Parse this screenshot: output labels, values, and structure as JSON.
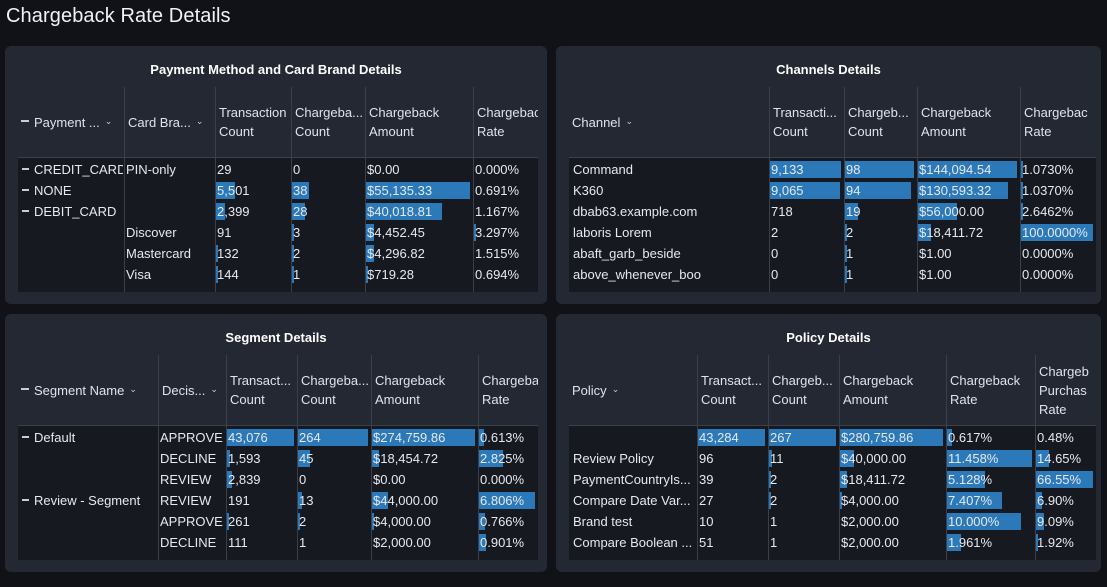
{
  "page": {
    "title": "Chargeback Rate Details"
  },
  "colors": {
    "bar": "#2b79b8",
    "panel": "#232832",
    "body": "#16191f"
  },
  "panels": {
    "payment": {
      "title": "Payment Method and Card Brand Details",
      "headers": [
        "Payment ...",
        "Card Bra...",
        "Transaction\nCount",
        "Chargeba...\nCount",
        "Chargeback\nAmount",
        "Chargeback\nRate"
      ],
      "rows": [
        {
          "a": "CREDIT_CARD",
          "b": "PIN-only",
          "c": "29",
          "d": "0",
          "e": "$0.00",
          "f": "0.000%",
          "cp": 0.0,
          "dp": 0.0,
          "ep": 0.0,
          "fp": 0.0
        },
        {
          "a": "NONE",
          "b": "",
          "c": "5,501",
          "d": "38",
          "e": "$55,135.33",
          "f": "0.691%",
          "cp": 0.27,
          "dp": 0.24,
          "ep": 1.0,
          "fp": 0.0
        },
        {
          "a": "DEBIT_CARD",
          "b": "",
          "c": "2,399",
          "d": "28",
          "e": "$40,018.81",
          "f": "1.167%",
          "cp": 0.12,
          "dp": 0.18,
          "ep": 0.73,
          "fp": 0.0
        },
        {
          "a": "",
          "b": "Discover",
          "c": "91",
          "d": "3",
          "e": "$4,452.45",
          "f": "3.297%",
          "cp": 0.0,
          "dp": 0.02,
          "ep": 0.08,
          "fp": 0.02
        },
        {
          "a": "",
          "b": "Mastercard",
          "c": "132",
          "d": "2",
          "e": "$4,296.82",
          "f": "1.515%",
          "cp": 0.01,
          "dp": 0.02,
          "ep": 0.08,
          "fp": 0.0
        },
        {
          "a": "",
          "b": "Visa",
          "c": "144",
          "d": "1",
          "e": "$719.28",
          "f": "0.694%",
          "cp": 0.01,
          "dp": 0.01,
          "ep": 0.01,
          "fp": 0.0
        }
      ]
    },
    "channels": {
      "title": "Channels Details",
      "headers": [
        "Channel",
        "Transacti...\nCount",
        "Chargeb...\nCount",
        "Chargeback\nAmount",
        "Chargebac\nRate"
      ],
      "rows": [
        {
          "a": "Command",
          "c": "9,133",
          "d": "98",
          "e": "$144,094.54",
          "f": "1.0730%",
          "cp": 1.0,
          "dp": 1.0,
          "ep": 1.0,
          "fp": 0.01
        },
        {
          "a": "K360",
          "c": "9,065",
          "d": "94",
          "e": "$130,593.32",
          "f": "1.0370%",
          "cp": 0.99,
          "dp": 0.96,
          "ep": 0.91,
          "fp": 0.01
        },
        {
          "a": "dbab63.example.com",
          "c": "718",
          "d": "19",
          "e": "$56,000.00",
          "f": "2.6462%",
          "cp": 0.0,
          "dp": 0.19,
          "ep": 0.39,
          "fp": 0.03
        },
        {
          "a": "laboris Lorem",
          "c": "2",
          "d": "2",
          "e": "$18,411.72",
          "f": "100.0000%",
          "cp": 0.0,
          "dp": 0.02,
          "ep": 0.13,
          "fp": 1.0
        },
        {
          "a": "abaft_garb_beside",
          "c": "0",
          "d": "1",
          "e": "$1.00",
          "f": "0.0000%",
          "cp": 0.0,
          "dp": 0.01,
          "ep": 0.0,
          "fp": 0.0
        },
        {
          "a": "above_whenever_boo",
          "c": "0",
          "d": "1",
          "e": "$1.00",
          "f": "0.0000%",
          "cp": 0.0,
          "dp": 0.01,
          "ep": 0.0,
          "fp": 0.0
        }
      ]
    },
    "segment": {
      "title": "Segment Details",
      "headers": [
        "Segment Name",
        "Decis...",
        "Transact...\nCount",
        "Chargeba...\nCount",
        "Chargeback\nAmount",
        "Chargeba\nRate"
      ],
      "rows": [
        {
          "a": "Default",
          "b": "APPROVE",
          "c": "43,076",
          "d": "264",
          "e": "$274,759.86",
          "f": "0.613%",
          "cp": 1.0,
          "dp": 1.0,
          "ep": 1.0,
          "fp": 0.09
        },
        {
          "a": "",
          "b": "DECLINE",
          "c": "1,593",
          "d": "45",
          "e": "$18,454.72",
          "f": "2.825%",
          "cp": 0.04,
          "dp": 0.17,
          "ep": 0.07,
          "fp": 0.42
        },
        {
          "a": "",
          "b": "REVIEW",
          "c": "2,839",
          "d": "0",
          "e": "$0.00",
          "f": "0.000%",
          "cp": 0.07,
          "dp": 0.0,
          "ep": 0.0,
          "fp": 0.0
        },
        {
          "a": "Review - Segment",
          "b": "REVIEW",
          "c": "191",
          "d": "13",
          "e": "$44,000.00",
          "f": "6.806%",
          "cp": 0.0,
          "dp": 0.05,
          "ep": 0.16,
          "fp": 1.0
        },
        {
          "a": "",
          "b": "APPROVE",
          "c": "261",
          "d": "2",
          "e": "$4,000.00",
          "f": "0.766%",
          "cp": 0.01,
          "dp": 0.01,
          "ep": 0.01,
          "fp": 0.11
        },
        {
          "a": "",
          "b": "DECLINE",
          "c": "111",
          "d": "1",
          "e": "$2,000.00",
          "f": "0.901%",
          "cp": 0.0,
          "dp": 0.0,
          "ep": 0.0,
          "fp": 0.13
        }
      ]
    },
    "policy": {
      "title": "Policy Details",
      "headers": [
        "Policy",
        "Transact...\nCount",
        "Chargeb...\nCount",
        "Chargeback\nAmount",
        "Chargeback\nRate",
        "Chargeb\nPurchas\nRate"
      ],
      "rows": [
        {
          "a": "",
          "c": "43,284",
          "d": "267",
          "e": "$280,759.86",
          "f": "0.617%",
          "g": "0.48%",
          "cp": 1.0,
          "dp": 1.0,
          "ep": 1.0,
          "fp": 0.06,
          "gp": 0.0
        },
        {
          "a": "Review Policy",
          "c": "96",
          "d": "11",
          "e": "$40,000.00",
          "f": "11.458%",
          "g": "14.65%",
          "cp": 0.0,
          "dp": 0.04,
          "ep": 0.14,
          "fp": 1.0,
          "gp": 0.22
        },
        {
          "a": "PaymentCountryIs...",
          "c": "39",
          "d": "2",
          "e": "$18,411.72",
          "f": "5.128%",
          "g": "66.55%",
          "cp": 0.0,
          "dp": 0.01,
          "ep": 0.07,
          "fp": 0.45,
          "gp": 1.0
        },
        {
          "a": "Compare Date Var...",
          "c": "27",
          "d": "2",
          "e": "$4,000.00",
          "f": "7.407%",
          "g": "6.90%",
          "cp": 0.0,
          "dp": 0.01,
          "ep": 0.01,
          "fp": 0.65,
          "gp": 0.1
        },
        {
          "a": "Brand test",
          "c": "10",
          "d": "1",
          "e": "$2,000.00",
          "f": "10.000%",
          "g": "9.09%",
          "cp": 0.0,
          "dp": 0.0,
          "ep": 0.0,
          "fp": 0.87,
          "gp": 0.14
        },
        {
          "a": "Compare Boolean ...",
          "c": "51",
          "d": "1",
          "e": "$2,000.00",
          "f": "1.961%",
          "g": "1.92%",
          "cp": 0.0,
          "dp": 0.0,
          "ep": 0.0,
          "fp": 0.17,
          "gp": 0.03
        }
      ]
    }
  }
}
